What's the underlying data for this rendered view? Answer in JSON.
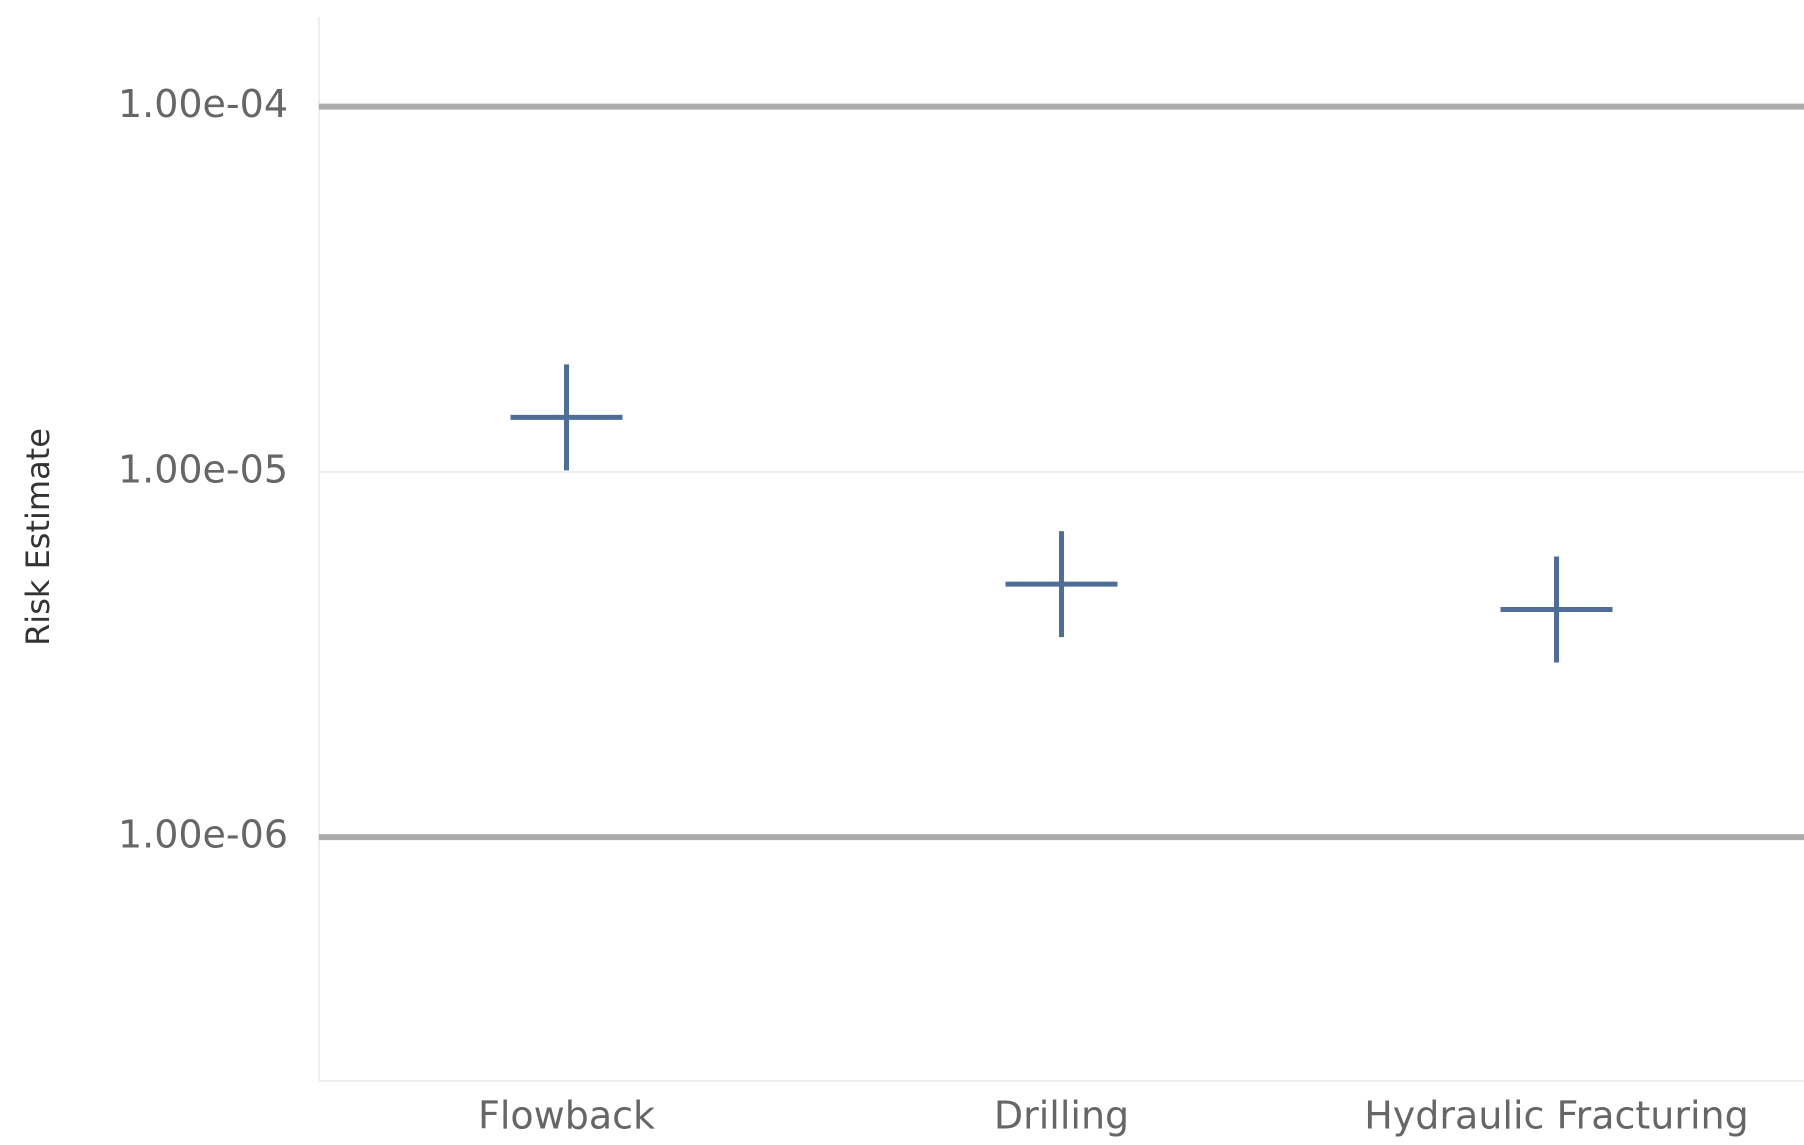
{
  "chart_data": {
    "type": "scatter",
    "y_label": "Risk Estimate",
    "categories": [
      "Flowback",
      "Drilling",
      "Hydraulic Fracturing"
    ],
    "values": [
      1.41e-05,
      4.93e-06,
      4.2e-06
    ],
    "color": "#4e6d99",
    "marker": "cross",
    "log_scale_y": true,
    "ylim": [
      2.15e-07,
      0.000176
    ],
    "yticks": [
      {
        "value": 0.0001,
        "label": "1.00e-04"
      },
      {
        "value": 1e-05,
        "label": "1.00e-05"
      },
      {
        "value": 1e-06,
        "label": "1.00e-06"
      }
    ],
    "grid": true,
    "reference_lines": [
      0.0001,
      1e-06
    ]
  }
}
